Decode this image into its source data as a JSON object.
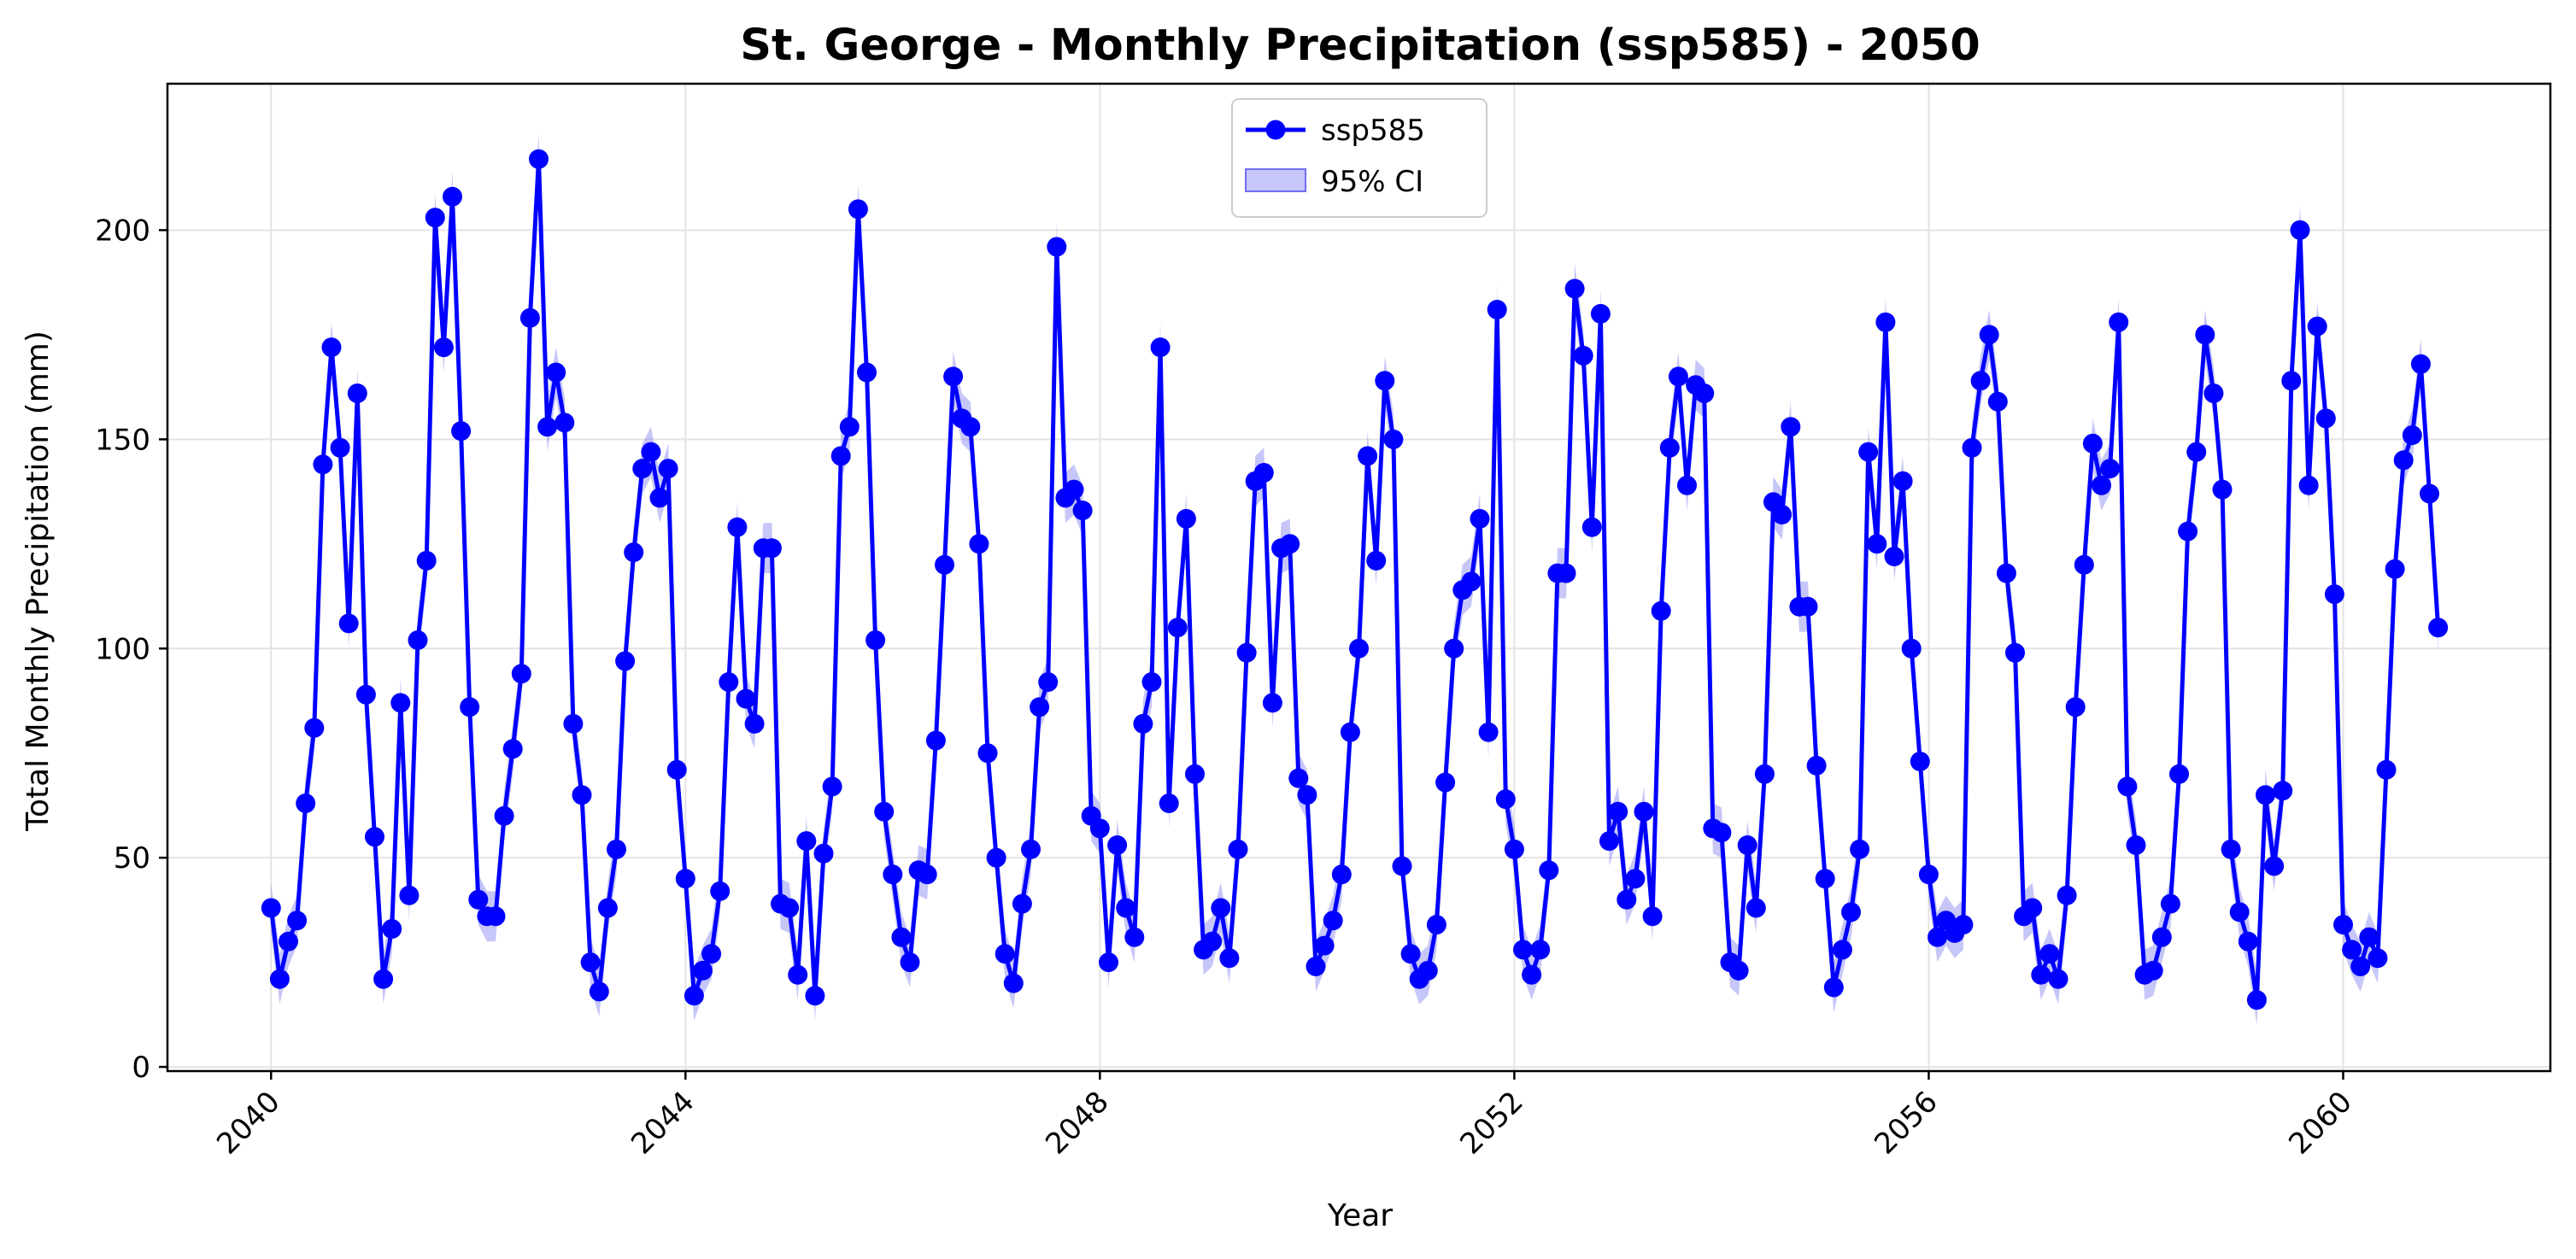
{
  "chart_data": {
    "type": "line",
    "title": "St. George - Monthly Precipitation (ssp585) - 2050",
    "xlabel": "Year",
    "ylabel": "Total Monthly Precipitation (mm)",
    "xlim": [
      2039.0,
      2062.0
    ],
    "ylim": [
      -1,
      235
    ],
    "x_ticks": [
      2040,
      2044,
      2048,
      2052,
      2056,
      2060
    ],
    "x_tick_labels": [
      "2040",
      "2044",
      "2048",
      "2052",
      "2056",
      "2060"
    ],
    "y_ticks": [
      0,
      50,
      100,
      150,
      200
    ],
    "y_tick_labels": [
      "0",
      "50",
      "100",
      "150",
      "200"
    ],
    "grid": true,
    "legend_position": "top-center",
    "legend": [
      "ssp585",
      "95% CI"
    ],
    "x_start": "2040-01",
    "x_step": "1 month",
    "ci_halfwidth_mm": 6,
    "series": [
      {
        "name": "ssp585",
        "color": "#0000ff",
        "ci_color": "#7070f0",
        "values": [
          38,
          21,
          30,
          35,
          63,
          81,
          144,
          172,
          148,
          106,
          161,
          89,
          55,
          21,
          33,
          87,
          41,
          102,
          121,
          203,
          172,
          208,
          152,
          86,
          40,
          36,
          36,
          60,
          76,
          94,
          179,
          217,
          153,
          166,
          154,
          82,
          65,
          25,
          18,
          38,
          52,
          97,
          123,
          143,
          147,
          136,
          143,
          71,
          45,
          17,
          23,
          27,
          42,
          92,
          129,
          88,
          82,
          124,
          124,
          39,
          38,
          22,
          54,
          17,
          51,
          67,
          146,
          153,
          205,
          166,
          102,
          61,
          46,
          31,
          25,
          47,
          46,
          78,
          120,
          165,
          155,
          153,
          125,
          75,
          50,
          27,
          20,
          39,
          52,
          86,
          92,
          196,
          136,
          138,
          133,
          60,
          57,
          25,
          53,
          38,
          31,
          82,
          92,
          172,
          63,
          105,
          131,
          70,
          28,
          30,
          38,
          26,
          52,
          99,
          140,
          142,
          87,
          124,
          125,
          69,
          65,
          24,
          29,
          35,
          46,
          80,
          100,
          146,
          121,
          164,
          150,
          48,
          27,
          21,
          23,
          34,
          68,
          100,
          114,
          116,
          131,
          80,
          181,
          64,
          52,
          28,
          22,
          28,
          47,
          118,
          118,
          186,
          170,
          129,
          180,
          54,
          61,
          40,
          45,
          61,
          36,
          109,
          148,
          165,
          139,
          163,
          161,
          57,
          56,
          25,
          23,
          53,
          38,
          70,
          135,
          132,
          153,
          110,
          110,
          72,
          45,
          19,
          28,
          37,
          52,
          147,
          125,
          178,
          122,
          140,
          100,
          73,
          46,
          31,
          35,
          32,
          34,
          148,
          164,
          175,
          159,
          118,
          99,
          36,
          38,
          22,
          27,
          21,
          41,
          86,
          120,
          149,
          139,
          143,
          178,
          67,
          53,
          22,
          23,
          31,
          39,
          70,
          128,
          147,
          175,
          161,
          138,
          52,
          37,
          30,
          16,
          65,
          48,
          66,
          164,
          200,
          139,
          177,
          155,
          113,
          34,
          28,
          24,
          31,
          26,
          71,
          119,
          145,
          151,
          168,
          137,
          105
        ]
      }
    ]
  }
}
